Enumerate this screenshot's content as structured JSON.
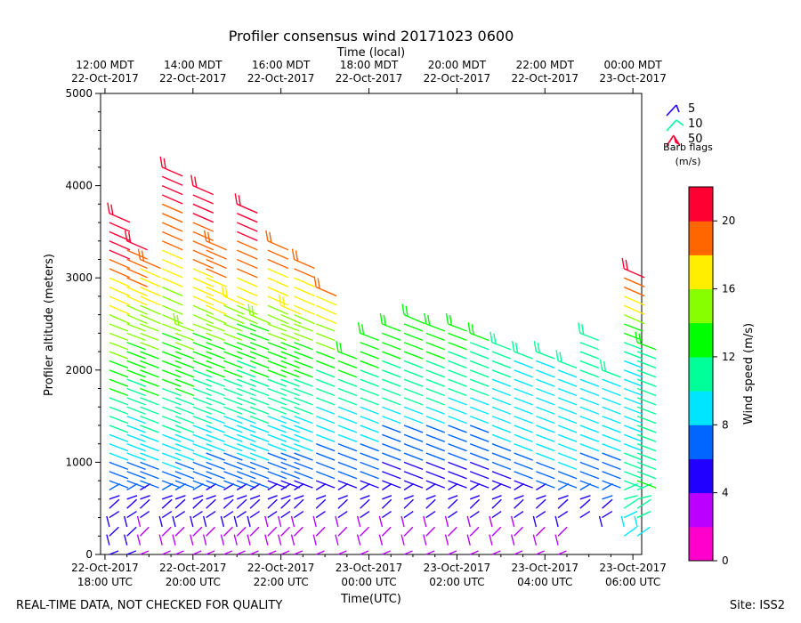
{
  "chart_data": {
    "type": "wind-barb",
    "title": "Profiler consensus wind 20171023 0600",
    "top_axis_label": "Time (local)",
    "xlabel": "Time(UTC)",
    "ylabel": "Profiler altitude (meters)",
    "ylim": [
      0,
      5000
    ],
    "y_ticks": [
      0,
      1000,
      2000,
      3000,
      4000,
      5000
    ],
    "xlim_hours_since_18utc": [
      -0.1,
      12.2
    ],
    "x_ticks": [
      {
        "hour": 0,
        "line1": "22-Oct-2017",
        "line2": "18:00 UTC"
      },
      {
        "hour": 2,
        "line1": "22-Oct-2017",
        "line2": "20:00 UTC"
      },
      {
        "hour": 4,
        "line1": "22-Oct-2017",
        "line2": "22:00 UTC"
      },
      {
        "hour": 6,
        "line1": "23-Oct-2017",
        "line2": "00:00 UTC"
      },
      {
        "hour": 8,
        "line1": "23-Oct-2017",
        "line2": "02:00 UTC"
      },
      {
        "hour": 10,
        "line1": "23-Oct-2017",
        "line2": "04:00 UTC"
      },
      {
        "hour": 12,
        "line1": "23-Oct-2017",
        "line2": "06:00 UTC"
      }
    ],
    "top_ticks": [
      {
        "hour": 0,
        "line1": "12:00 MDT",
        "line2": "22-Oct-2017"
      },
      {
        "hour": 2,
        "line1": "14:00 MDT",
        "line2": "22-Oct-2017"
      },
      {
        "hour": 4,
        "line1": "16:00 MDT",
        "line2": "22-Oct-2017"
      },
      {
        "hour": 6,
        "line1": "18:00 MDT",
        "line2": "22-Oct-2017"
      },
      {
        "hour": 8,
        "line1": "20:00 MDT",
        "line2": "22-Oct-2017"
      },
      {
        "hour": 10,
        "line1": "22:00 MDT",
        "line2": "22-Oct-2017"
      },
      {
        "hour": 12,
        "line1": "00:00 MDT",
        "line2": "23-Oct-2017"
      }
    ],
    "colorbar": {
      "label": "Wind speed (m/s)",
      "min": 0,
      "max": 22,
      "step": 2,
      "ticks": [
        0,
        4,
        8,
        12,
        16,
        20
      ],
      "colors": [
        "#ff00cc",
        "#bb00ff",
        "#2200ff",
        "#0066ff",
        "#00e5ff",
        "#00ff99",
        "#00ff00",
        "#88ff00",
        "#ffee00",
        "#ff6600",
        "#ff0033"
      ]
    },
    "barb_legend": {
      "title_line1": "Barb flags",
      "title_line2": "(m/s)",
      "entries": [
        {
          "label": "5",
          "color": "#2200ff"
        },
        {
          "label": "10",
          "color": "#00ff99"
        },
        {
          "label": "50",
          "color": "#ff0033"
        }
      ]
    },
    "columns": [
      {
        "t": 0.1,
        "top": 3700,
        "profile": [
          [
            0,
            4
          ],
          [
            500,
            5
          ],
          [
            900,
            7
          ],
          [
            1200,
            9
          ],
          [
            1800,
            12
          ],
          [
            2400,
            15
          ],
          [
            2900,
            17
          ],
          [
            3300,
            20
          ],
          [
            3700,
            21
          ]
        ]
      },
      {
        "t": 0.5,
        "top": 3400,
        "profile": [
          [
            0,
            4
          ],
          [
            500,
            5
          ],
          [
            900,
            7
          ],
          [
            1300,
            9
          ],
          [
            2000,
            12
          ],
          [
            2600,
            15
          ],
          [
            3000,
            18
          ],
          [
            3400,
            20
          ]
        ]
      },
      {
        "t": 0.8,
        "top": 3200,
        "profile": [
          [
            0,
            3
          ],
          [
            400,
            4
          ],
          [
            900,
            7
          ],
          [
            1400,
            10
          ],
          [
            2000,
            13
          ],
          [
            2800,
            16
          ],
          [
            3200,
            18
          ]
        ]
      },
      {
        "t": 1.3,
        "top": 4200,
        "profile": [
          [
            0,
            3
          ],
          [
            500,
            5
          ],
          [
            1000,
            8
          ],
          [
            1600,
            11
          ],
          [
            2200,
            13
          ],
          [
            4100,
            21
          ],
          [
            4200,
            21
          ]
        ]
      },
      {
        "t": 1.6,
        "top": 2500,
        "profile": [
          [
            0,
            3
          ],
          [
            500,
            5
          ],
          [
            900,
            7
          ],
          [
            1400,
            10
          ],
          [
            2000,
            13
          ],
          [
            2500,
            15
          ]
        ]
      },
      {
        "t": 2.0,
        "top": 4000,
        "profile": [
          [
            0,
            3
          ],
          [
            500,
            5
          ],
          [
            900,
            7
          ],
          [
            1500,
            10
          ],
          [
            2300,
            13
          ],
          [
            2900,
            17
          ],
          [
            3400,
            19
          ],
          [
            3900,
            21
          ]
        ]
      },
      {
        "t": 2.3,
        "top": 3400,
        "profile": [
          [
            0,
            3
          ],
          [
            600,
            5
          ],
          [
            1000,
            7
          ],
          [
            1600,
            10
          ],
          [
            2200,
            13
          ],
          [
            2800,
            17
          ],
          [
            3400,
            19
          ]
        ]
      },
      {
        "t": 2.7,
        "top": 2800,
        "profile": [
          [
            0,
            3
          ],
          [
            600,
            5
          ],
          [
            1000,
            7
          ],
          [
            1600,
            10
          ],
          [
            2200,
            13
          ],
          [
            2800,
            16
          ]
        ]
      },
      {
        "t": 3.0,
        "top": 3800,
        "profile": [
          [
            0,
            3
          ],
          [
            600,
            5
          ],
          [
            1100,
            8
          ],
          [
            1600,
            10
          ],
          [
            2400,
            13
          ],
          [
            3200,
            19
          ],
          [
            3800,
            21
          ]
        ]
      },
      {
        "t": 3.3,
        "top": 2600,
        "profile": [
          [
            0,
            3
          ],
          [
            600,
            5
          ],
          [
            1100,
            8
          ],
          [
            1700,
            11
          ],
          [
            2200,
            13
          ],
          [
            2600,
            14
          ]
        ]
      },
      {
        "t": 3.7,
        "top": 3400,
        "profile": [
          [
            0,
            3
          ],
          [
            700,
            5
          ],
          [
            1200,
            8
          ],
          [
            1800,
            11
          ],
          [
            2600,
            15
          ],
          [
            3000,
            17
          ],
          [
            3400,
            19
          ]
        ]
      },
      {
        "t": 4.0,
        "top": 2700,
        "profile": [
          [
            0,
            3
          ],
          [
            700,
            5
          ],
          [
            1200,
            8
          ],
          [
            1800,
            11
          ],
          [
            2400,
            14
          ],
          [
            2700,
            16
          ]
        ]
      },
      {
        "t": 4.3,
        "top": 3200,
        "profile": [
          [
            0,
            3
          ],
          [
            700,
            5
          ],
          [
            1200,
            8
          ],
          [
            1800,
            11
          ],
          [
            2500,
            15
          ],
          [
            2900,
            17
          ],
          [
            3200,
            19
          ]
        ]
      },
      {
        "t": 4.8,
        "top": 2900,
        "profile": [
          [
            0,
            3
          ],
          [
            700,
            5
          ],
          [
            1300,
            8
          ],
          [
            1900,
            11
          ],
          [
            2400,
            15
          ],
          [
            2900,
            18
          ]
        ]
      },
      {
        "t": 5.3,
        "top": 2200,
        "profile": [
          [
            0,
            3
          ],
          [
            700,
            5
          ],
          [
            1300,
            8
          ],
          [
            1800,
            11
          ],
          [
            2200,
            13
          ]
        ]
      },
      {
        "t": 5.8,
        "top": 2400,
        "profile": [
          [
            0,
            3
          ],
          [
            700,
            5
          ],
          [
            1300,
            8
          ],
          [
            1800,
            11
          ],
          [
            2400,
            13
          ]
        ]
      },
      {
        "t": 6.3,
        "top": 2500,
        "profile": [
          [
            0,
            3
          ],
          [
            800,
            5
          ],
          [
            1300,
            7
          ],
          [
            1800,
            11
          ],
          [
            2500,
            13
          ]
        ]
      },
      {
        "t": 6.8,
        "top": 2600,
        "profile": [
          [
            0,
            3
          ],
          [
            800,
            5
          ],
          [
            1300,
            7
          ],
          [
            1800,
            11
          ],
          [
            2600,
            13
          ]
        ]
      },
      {
        "t": 7.3,
        "top": 2500,
        "profile": [
          [
            0,
            3
          ],
          [
            800,
            5
          ],
          [
            1300,
            7
          ],
          [
            1800,
            11
          ],
          [
            2500,
            13
          ]
        ]
      },
      {
        "t": 7.8,
        "top": 2500,
        "profile": [
          [
            0,
            3
          ],
          [
            800,
            5
          ],
          [
            1300,
            7
          ],
          [
            1800,
            10
          ],
          [
            2500,
            13
          ]
        ]
      },
      {
        "t": 8.3,
        "top": 2400,
        "profile": [
          [
            0,
            3
          ],
          [
            800,
            5
          ],
          [
            1300,
            7
          ],
          [
            1800,
            10
          ],
          [
            2400,
            12
          ]
        ]
      },
      {
        "t": 8.8,
        "top": 2300,
        "profile": [
          [
            0,
            3
          ],
          [
            800,
            5
          ],
          [
            1300,
            8
          ],
          [
            2000,
            10
          ],
          [
            2300,
            11
          ]
        ]
      },
      {
        "t": 9.3,
        "top": 2200,
        "profile": [
          [
            0,
            3
          ],
          [
            700,
            5
          ],
          [
            1200,
            8
          ],
          [
            2200,
            10
          ]
        ]
      },
      {
        "t": 9.8,
        "top": 2200,
        "profile": [
          [
            0,
            3
          ],
          [
            600,
            5
          ],
          [
            1100,
            8
          ],
          [
            2200,
            10
          ]
        ]
      },
      {
        "t": 10.3,
        "top": 2100,
        "profile": [
          [
            0,
            3
          ],
          [
            500,
            5
          ],
          [
            1000,
            8
          ],
          [
            2100,
            10
          ]
        ]
      },
      {
        "t": 10.8,
        "top": 2400,
        "profile": [
          [
            400,
            5
          ],
          [
            900,
            7
          ],
          [
            1500,
            9
          ],
          [
            2400,
            11
          ]
        ]
      },
      {
        "t": 11.3,
        "top": 2000,
        "profile": [
          [
            300,
            5
          ],
          [
            900,
            7
          ],
          [
            1500,
            9
          ],
          [
            2000,
            10
          ]
        ]
      },
      {
        "t": 11.8,
        "top": 3100,
        "profile": [
          [
            200,
            9
          ],
          [
            800,
            11
          ],
          [
            1500,
            9
          ],
          [
            2200,
            10
          ],
          [
            2700,
            16
          ],
          [
            3100,
            20
          ]
        ]
      },
      {
        "t": 12.1,
        "top": 2300,
        "profile": [
          [
            200,
            9
          ],
          [
            800,
            12
          ],
          [
            1500,
            10
          ],
          [
            2300,
            12
          ]
        ]
      }
    ]
  },
  "footer": {
    "left": "REAL-TIME DATA, NOT CHECKED FOR QUALITY",
    "right": "Site: ISS2"
  }
}
